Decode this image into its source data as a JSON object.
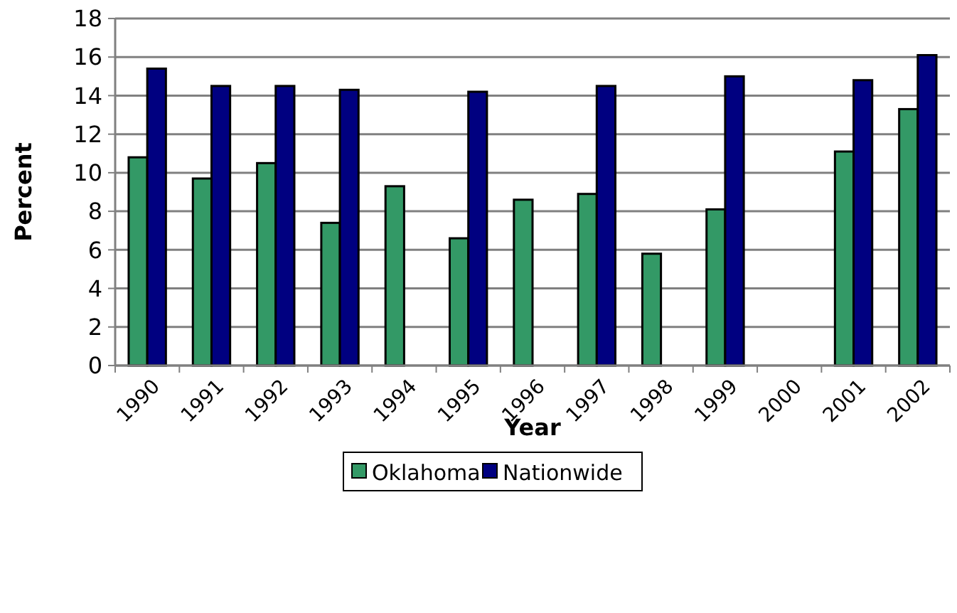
{
  "chart_data": {
    "type": "bar",
    "xlabel": "Year",
    "ylabel": "Percent",
    "categories": [
      "1990",
      "1991",
      "1992",
      "1993",
      "1994",
      "1995",
      "1996",
      "1997",
      "1998",
      "1999",
      "2000",
      "2001",
      "2002"
    ],
    "series": [
      {
        "name": "Oklahoma",
        "color": "#339966",
        "values": [
          10.8,
          9.7,
          10.5,
          7.4,
          9.3,
          6.6,
          8.6,
          8.9,
          5.8,
          8.1,
          null,
          11.1,
          13.3
        ]
      },
      {
        "name": "Nationwide",
        "color": "#000080",
        "values": [
          15.4,
          14.5,
          14.5,
          14.3,
          null,
          14.2,
          null,
          14.5,
          null,
          15.0,
          null,
          14.8,
          16.1
        ]
      }
    ],
    "ylim": [
      0,
      18
    ],
    "yticks": [
      0,
      2,
      4,
      6,
      8,
      10,
      12,
      14,
      16,
      18
    ],
    "grid": "y",
    "legend": "bottom"
  }
}
